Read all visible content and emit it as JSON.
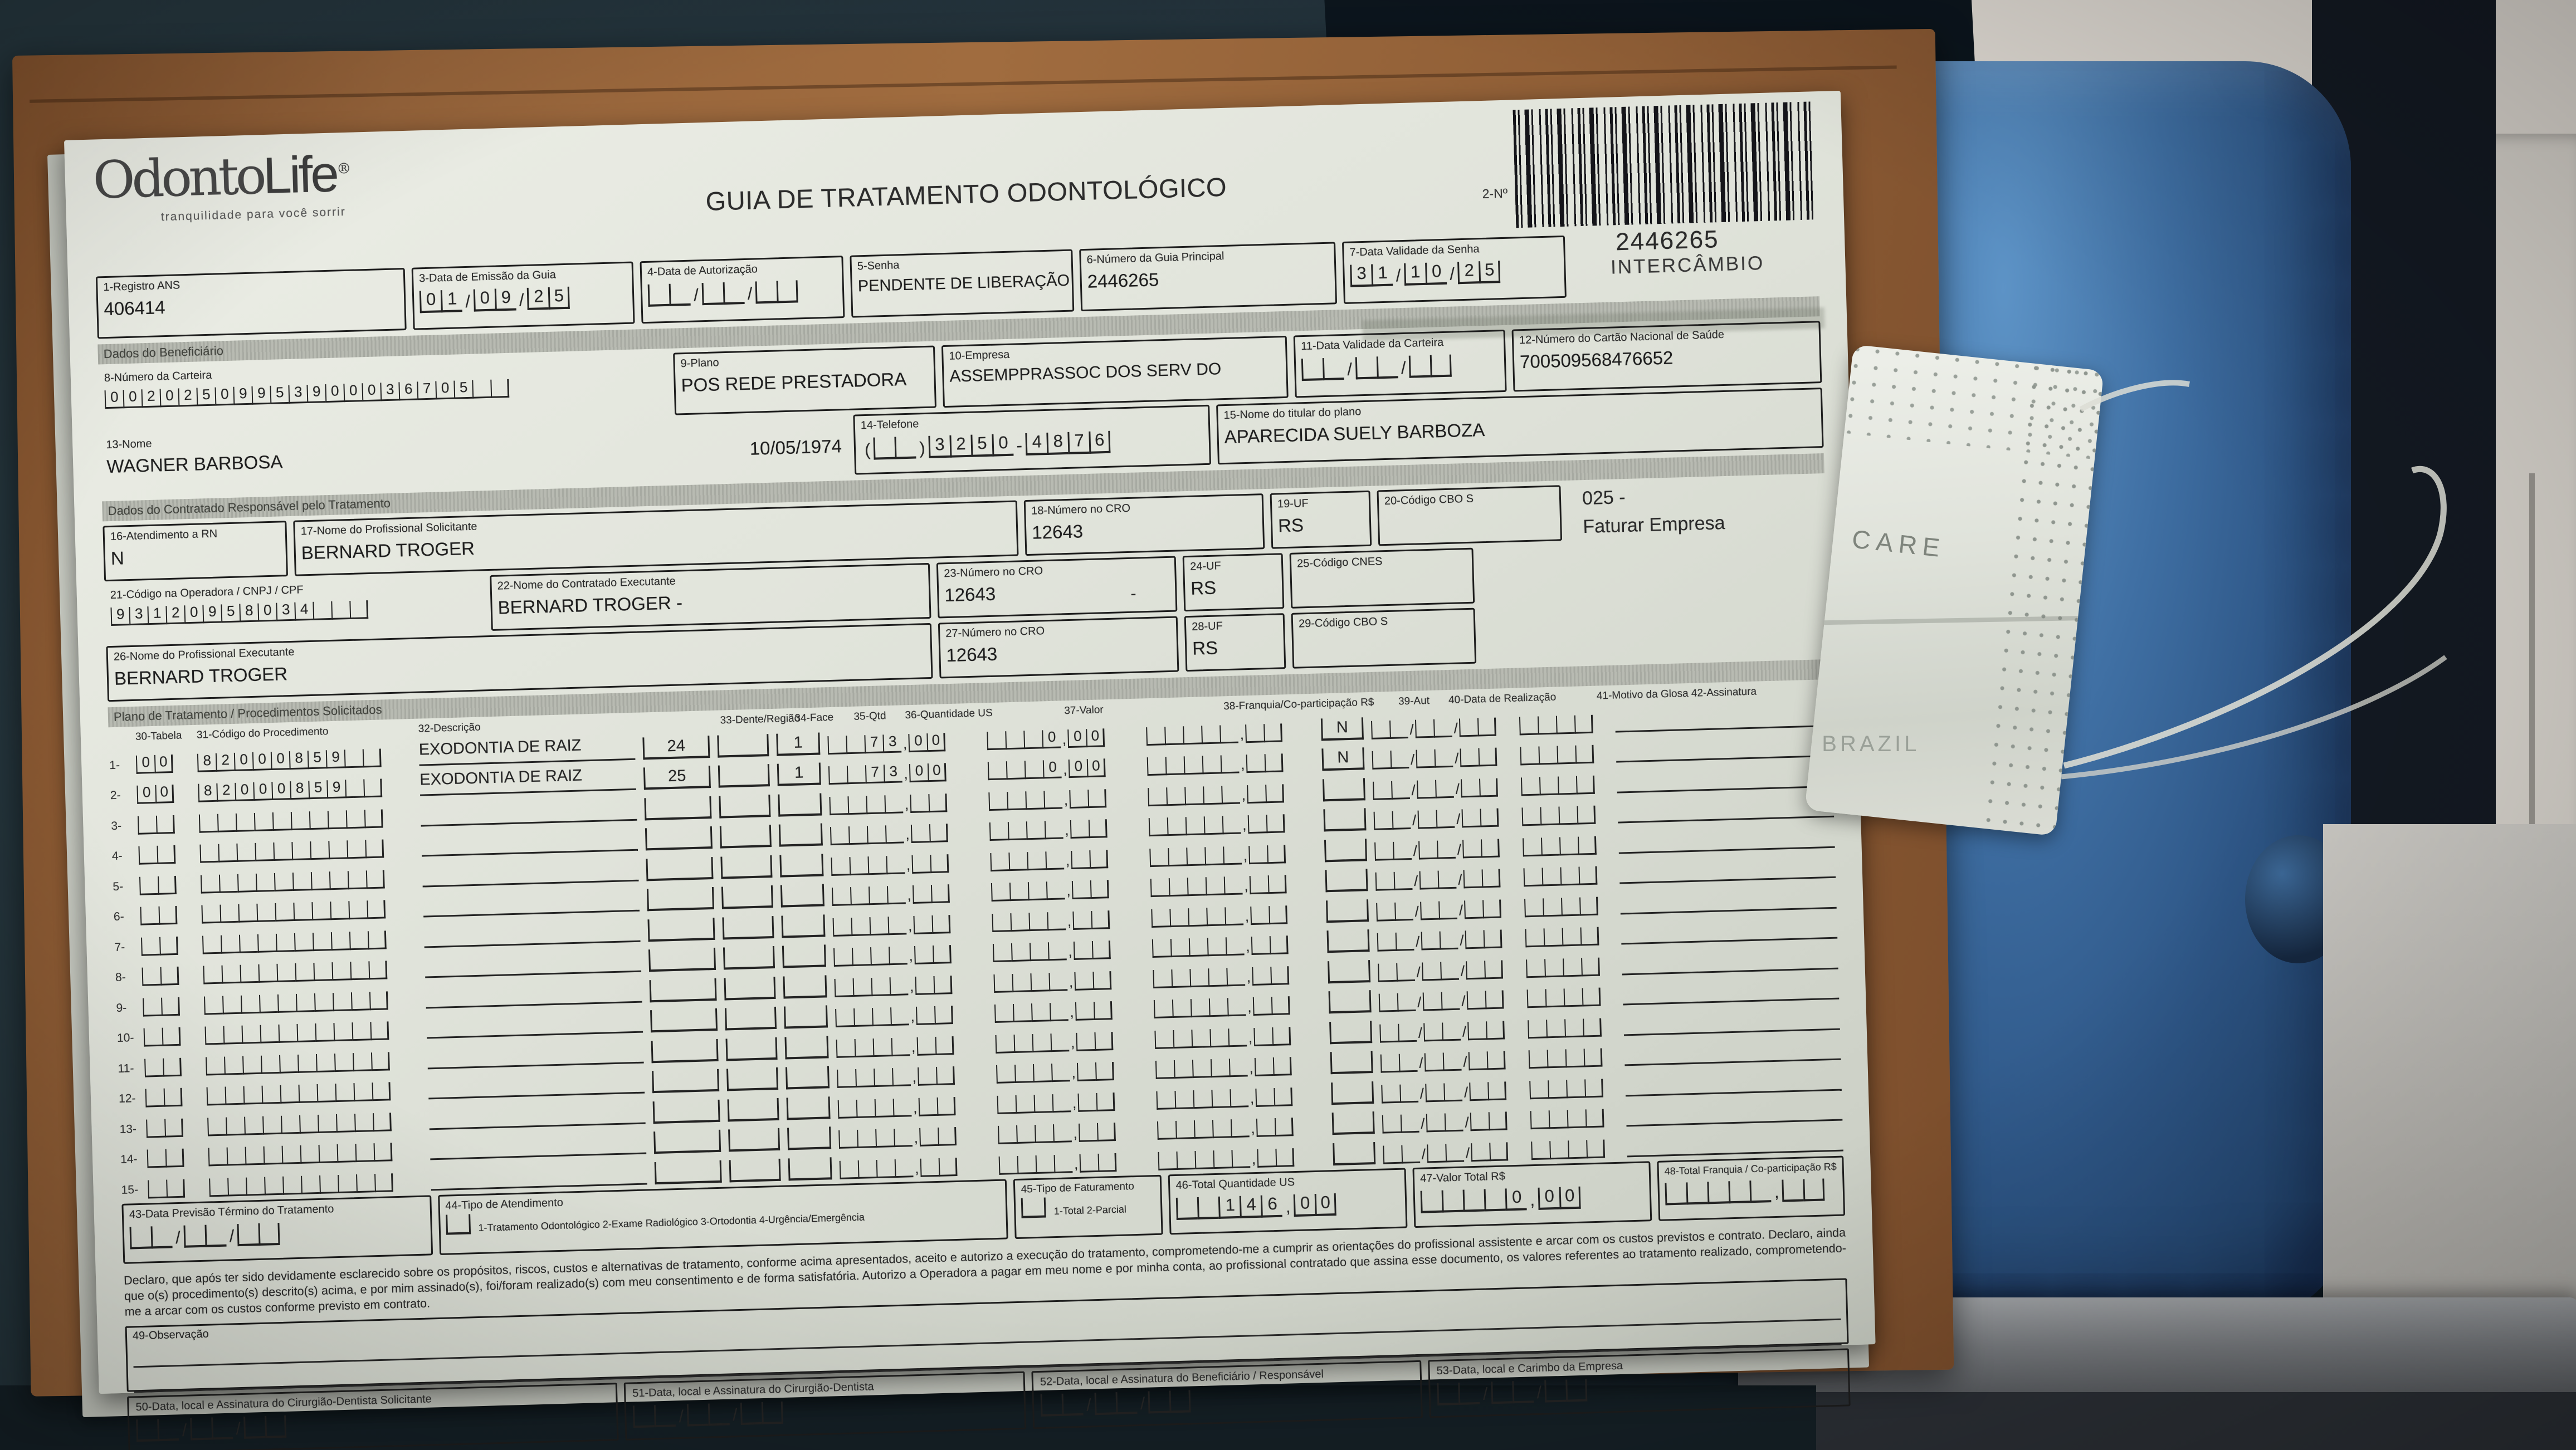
{
  "header": {
    "logo_part1": "Odonto",
    "logo_part2": "Life",
    "logo_reg": "®",
    "tagline": "tranquilidade para você sorrir",
    "title": "GUIA DE TRATAMENTO ODONTOLÓGICO",
    "numero_label": "2-Nº",
    "barcode_number": "2446265",
    "barcode_caption": "INTERCÂMBIO"
  },
  "row1": {
    "registro_ans": {
      "label": "1-Registro ANS",
      "value": "406414"
    },
    "data_emissao": {
      "label": "3-Data de Emissão da Guia",
      "digits": [
        "0",
        "1",
        "/",
        "0",
        "9",
        "/",
        "2",
        "5"
      ]
    },
    "data_autorizacao": {
      "label": "4-Data de Autorização",
      "digits": [
        "",
        "",
        "/",
        "",
        "",
        "/",
        "",
        ""
      ]
    },
    "senha": {
      "label": "5-Senha",
      "value": "PENDENTE DE LIBERAÇÃO"
    },
    "guia_principal": {
      "label": "6-Número da Guia Principal",
      "value": "2446265"
    },
    "validade_senha": {
      "label": "7-Data Validade da Senha",
      "digits": [
        "3",
        "1",
        "/",
        "1",
        "0",
        "/",
        "2",
        "5"
      ]
    }
  },
  "section_beneficiario": "Dados do Beneficiário",
  "row2": {
    "carteira": {
      "label": "8-Número da Carteira",
      "digits": "00202509953900036705",
      "cells": 22
    },
    "plano": {
      "label": "9-Plano",
      "value": "POS REDE PRESTADORA"
    },
    "empresa": {
      "label": "10-Empresa",
      "value": "ASSEMPPRASSOC DOS SERV DO"
    },
    "validade_carteira": {
      "label": "11-Data Validade da Carteira",
      "digits": [
        "",
        "",
        "/",
        "",
        "",
        "/",
        "",
        ""
      ]
    },
    "cns": {
      "label": "12-Número do Cartão Nacional de Saúde",
      "value": "700509568476652"
    }
  },
  "row3": {
    "nome": {
      "label": "13-Nome",
      "value": "WAGNER BARBOSA",
      "nascimento": "10/05/1974"
    },
    "telefone": {
      "label": "14-Telefone",
      "digits": [
        "(",
        "",
        "",
        ")",
        "3",
        "2",
        "5",
        "0",
        "-",
        "4",
        "8",
        "7",
        "6"
      ]
    },
    "titular": {
      "label": "15-Nome do titular do plano",
      "value": "APARECIDA SUELY BARBOZA"
    }
  },
  "section_contratado": "Dados do Contratado Responsável pelo Tratamento",
  "row4": {
    "atendimento_rn": {
      "label": "16-Atendimento a RN",
      "value": "N"
    },
    "solicitante": {
      "label": "17-Nome do Profissional Solicitante",
      "value": "BERNARD TROGER"
    },
    "cro": {
      "label": "18-Número no CRO",
      "value": "12643"
    },
    "uf": {
      "label": "19-UF",
      "value": "RS"
    },
    "cbo": {
      "label": "20-Código CBO S",
      "value": ""
    },
    "nota_linha1": "025 -",
    "nota_linha2": "Faturar Empresa"
  },
  "row5": {
    "operadora": {
      "label": "21-Código na Operadora / CNPJ / CPF",
      "digits": "93120958034",
      "cells": 14
    },
    "executante": {
      "label": "22-Nome do Contratado Executante",
      "value": "BERNARD TROGER  -"
    },
    "cro": {
      "label": "23-Número no CRO",
      "value": "12643",
      "suffix": "-"
    },
    "uf": {
      "label": "24-UF",
      "value": "RS"
    },
    "cnes": {
      "label": "25-Código CNES",
      "value": ""
    }
  },
  "row6": {
    "prof_executante": {
      "label": "26-Nome do Profissional Executante",
      "value": "BERNARD TROGER"
    },
    "cro": {
      "label": "27-Número no CRO",
      "value": "12643"
    },
    "uf": {
      "label": "28-UF",
      "value": "RS"
    },
    "cbo": {
      "label": "29-Código CBO S",
      "value": ""
    }
  },
  "section_plano": "Plano de Tratamento / Procedimentos Solicitados",
  "proc_table": {
    "headers": {
      "tabela": "30-Tabela",
      "codigo": "31-Código do Procedimento",
      "descricao": "32-Descrição",
      "dente": "33-Dente/Região",
      "face": "34-Face",
      "qtd": "35-Qtd",
      "qus": "36-Quantidade US",
      "valor": "37-Valor",
      "franquia": "38-Franquia/Co-participação R$",
      "aut": "39-Aut",
      "data": "40-Data de Realização",
      "glosa_assinatura": "41-Motivo da Glosa 42-Assinatura"
    },
    "rows": [
      {
        "num": "1",
        "tabela": "00",
        "codigo": "82000859",
        "descricao": "EXODONTIA DE RAIZ",
        "dente": "24",
        "qtd": "1",
        "qus": "73,00",
        "valor": "0,00",
        "aut": "N"
      },
      {
        "num": "2",
        "tabela": "00",
        "codigo": "82000859",
        "descricao": "EXODONTIA DE RAIZ",
        "dente": "25",
        "qtd": "1",
        "qus": "73,00",
        "valor": "0,00",
        "aut": "N"
      },
      {
        "num": "3",
        "tabela": "",
        "codigo": "",
        "descricao": "",
        "dente": "",
        "qtd": "",
        "qus": "",
        "valor": "",
        "aut": ""
      },
      {
        "num": "4",
        "tabela": "",
        "codigo": "",
        "descricao": "",
        "dente": "",
        "qtd": "",
        "qus": "",
        "valor": "",
        "aut": ""
      },
      {
        "num": "5",
        "tabela": "",
        "codigo": "",
        "descricao": "",
        "dente": "",
        "qtd": "",
        "qus": "",
        "valor": "",
        "aut": ""
      },
      {
        "num": "6",
        "tabela": "",
        "codigo": "",
        "descricao": "",
        "dente": "",
        "qtd": "",
        "qus": "",
        "valor": "",
        "aut": ""
      },
      {
        "num": "7",
        "tabela": "",
        "codigo": "",
        "descricao": "",
        "dente": "",
        "qtd": "",
        "qus": "",
        "valor": "",
        "aut": ""
      },
      {
        "num": "8",
        "tabela": "",
        "codigo": "",
        "descricao": "",
        "dente": "",
        "qtd": "",
        "qus": "",
        "valor": "",
        "aut": ""
      },
      {
        "num": "9",
        "tabela": "",
        "codigo": "",
        "descricao": "",
        "dente": "",
        "qtd": "",
        "qus": "",
        "valor": "",
        "aut": ""
      },
      {
        "num": "10",
        "tabela": "",
        "codigo": "",
        "descricao": "",
        "dente": "",
        "qtd": "",
        "qus": "",
        "valor": "",
        "aut": ""
      },
      {
        "num": "11",
        "tabela": "",
        "codigo": "",
        "descricao": "",
        "dente": "",
        "qtd": "",
        "qus": "",
        "valor": "",
        "aut": ""
      },
      {
        "num": "12",
        "tabela": "",
        "codigo": "",
        "descricao": "",
        "dente": "",
        "qtd": "",
        "qus": "",
        "valor": "",
        "aut": ""
      },
      {
        "num": "13",
        "tabela": "",
        "codigo": "",
        "descricao": "",
        "dente": "",
        "qtd": "",
        "qus": "",
        "valor": "",
        "aut": ""
      },
      {
        "num": "14",
        "tabela": "",
        "codigo": "",
        "descricao": "",
        "dente": "",
        "qtd": "",
        "qus": "",
        "valor": "",
        "aut": ""
      },
      {
        "num": "15",
        "tabela": "",
        "codigo": "",
        "descricao": "",
        "dente": "",
        "qtd": "",
        "qus": "",
        "valor": "",
        "aut": ""
      }
    ]
  },
  "footer": {
    "termino": {
      "label": "43-Data Previsão Término do Tratamento",
      "digits": [
        "",
        "",
        "/",
        "",
        "",
        "/",
        "",
        ""
      ]
    },
    "tipo_atendimento": {
      "label": "44-Tipo de Atendimento",
      "options": "1-Tratamento Odontológico  2-Exame Radiológico  3-Ortodontia  4-Urgência/Emergência"
    },
    "tipo_faturamento": {
      "label": "45-Tipo de Faturamento",
      "options": "1-Total  2-Parcial"
    },
    "total_us": {
      "label": "46-Total Quantidade US",
      "digits": [
        "",
        "",
        "1",
        "4",
        "6",
        ",",
        "0",
        "0"
      ]
    },
    "valor_total": {
      "label": "47-Valor Total R$",
      "digits": [
        "",
        "",
        "",
        "",
        "0",
        ",",
        "0",
        "0"
      ]
    },
    "total_franquia": {
      "label": "48-Total Franquia / Co-participação R$",
      "digits": [
        "",
        "",
        "",
        "",
        "",
        ",",
        "",
        ""
      ]
    }
  },
  "declaration": "Declaro, que após ter sido devidamente esclarecido sobre os propósitos, riscos, custos e alternativas de tratamento, conforme acima apresentados, aceito e autorizo a execução do tratamento, comprometendo-me a cumprir as orientações do profissional assistente e arcar com os custos previstos e contrato. Declaro, ainda que o(s) procedimento(s) descrito(s) acima, e por mim assinado(s), foi/foram realizado(s) com meu consentimento e de forma satisfatória. Autorizo a Operadora a pagar em meu nome e por minha conta, ao profissional contratado que assina esse documento, os valores referentes ao tratamento realizado, comprometendo-me a arcar com os custos conforme previsto em contrato.",
  "observacao": {
    "label": "49-Observação"
  },
  "signatures": [
    {
      "label": "50-Data, local e Assinatura do Cirurgião-Dentista Solicitante"
    },
    {
      "label": "51-Data, local e Assinatura do Cirurgião-Dentista"
    },
    {
      "label": "52-Data, local e Assinatura do Beneficiário / Responsável"
    },
    {
      "label": "53-Data, local e Carimbo da Empresa"
    }
  ],
  "sig_date_digits": [
    "",
    "",
    "/",
    "",
    "",
    "/",
    "",
    ""
  ],
  "environment": {
    "mask_text1": "CARE",
    "mask_text2": "BRAZIL"
  },
  "colors": {
    "envelope": "#95633a",
    "paper": "#e0e3da",
    "chair_blue": "#3f6fa3",
    "top_band": "#22313a"
  }
}
